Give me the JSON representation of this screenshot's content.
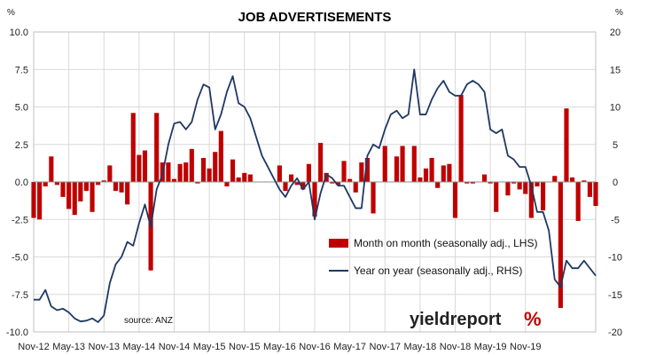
{
  "chart_data": {
    "type": "bar+line",
    "title": "JOB ADVERTISEMENTS",
    "left_unit": "%",
    "right_unit": "%",
    "left_axis": {
      "min": -10,
      "max": 10,
      "ticks": [
        "-10.0",
        "-7.5",
        "-5.0",
        "-2.5",
        "0.0",
        "2.5",
        "5.0",
        "7.5",
        "10.0"
      ]
    },
    "right_axis": {
      "min": -20,
      "max": 20,
      "ticks": [
        "-20",
        "-15",
        "-10",
        "-5",
        "0",
        "5",
        "10",
        "15",
        "20"
      ]
    },
    "x_axis": {
      "start": "2012-11",
      "end": "2019-11",
      "tick_labels": [
        "Nov-12",
        "May-13",
        "Nov-13",
        "May-14",
        "Nov-14",
        "May-15",
        "Nov-15",
        "May-16",
        "Nov-16",
        "May-17",
        "Nov-17",
        "May-18",
        "Nov-18",
        "May-19",
        "Nov-19"
      ]
    },
    "grid": true,
    "legend_position": "bottom-right",
    "source": "source: ANZ",
    "brand_text": "yieldreport",
    "brand_symbol": "%",
    "colors": {
      "bars": "#c00000",
      "line": "#1f3864",
      "grid": "#d9d9d9"
    },
    "series": [
      {
        "name": "Month on month (seasonally adj., LHS)",
        "kind": "bar",
        "axis": "left",
        "values": [
          -2.4,
          -2.5,
          -0.3,
          1.7,
          -0.2,
          -1.0,
          -1.8,
          -2.2,
          -1.3,
          -0.6,
          -2.0,
          -0.2,
          0.1,
          1.1,
          -0.6,
          -0.7,
          -1.5,
          4.6,
          1.8,
          2.1,
          -5.9,
          4.6,
          1.3,
          1.3,
          0.2,
          1.2,
          1.3,
          2.2,
          -0.1,
          1.6,
          0.9,
          2.0,
          3.4,
          -0.3,
          1.5,
          0.3,
          0.6,
          0.5,
          0.0,
          0.0,
          0.0,
          0.0,
          1.1,
          -0.6,
          0.5,
          -0.2,
          -0.5,
          1.2,
          -2.3,
          2.6,
          0.6,
          -0.1,
          -0.2,
          1.4,
          0.2,
          -0.7,
          1.3,
          1.6,
          -2.1,
          0.0,
          2.4,
          0.0,
          1.7,
          2.4,
          0.0,
          2.4,
          0.3,
          0.9,
          1.6,
          -0.4,
          1.1,
          1.2,
          -2.4,
          5.8,
          -0.1,
          -0.1,
          0.0,
          0.5,
          -0.1,
          -2.0,
          0.0,
          -0.9,
          -0.1,
          -0.5,
          -0.8,
          -2.4,
          -0.3,
          -1.9,
          0.0,
          0.4,
          -8.4,
          4.9,
          0.3,
          -2.6,
          0.1,
          -1.0,
          -1.6
        ]
      },
      {
        "name": "Year on year (seasonally adj., RHS)",
        "kind": "line",
        "axis": "right",
        "values": [
          -15.7,
          -15.7,
          -14.4,
          -16.6,
          -17.1,
          -16.9,
          -17.4,
          -18.2,
          -18.6,
          -18.5,
          -18.2,
          -18.7,
          -17.8,
          -13.5,
          -11.0,
          -10.0,
          -8.0,
          -8.5,
          -5.5,
          -3.0,
          -6.0,
          -1.0,
          1.0,
          5.0,
          7.8,
          8.0,
          7.0,
          8.0,
          11.0,
          13.0,
          12.6,
          7.0,
          9.0,
          12.0,
          14.1,
          10.5,
          10.0,
          8.5,
          6.0,
          3.5,
          2.0,
          0.5,
          -1.0,
          -2.0,
          -0.5,
          0.5,
          -1.0,
          0.0,
          -5.0,
          -1.5,
          1.0,
          0.5,
          -0.5,
          -0.5,
          -2.0,
          -3.5,
          -3.5,
          3.5,
          5.0,
          4.5,
          7.0,
          9.0,
          9.5,
          8.5,
          9.0,
          15.0,
          9.0,
          9.0,
          11.0,
          12.5,
          13.5,
          12.0,
          11.5,
          11.5,
          13.0,
          13.5,
          13.0,
          12.0,
          7.0,
          6.5,
          7.0,
          3.5,
          3.0,
          2.0,
          2.0,
          -0.5,
          -4.0,
          -4.0,
          -6.5,
          -13.0,
          -14.0,
          -10.5,
          -11.5,
          -11.5,
          -10.5,
          -11.5,
          -12.5
        ]
      }
    ]
  }
}
